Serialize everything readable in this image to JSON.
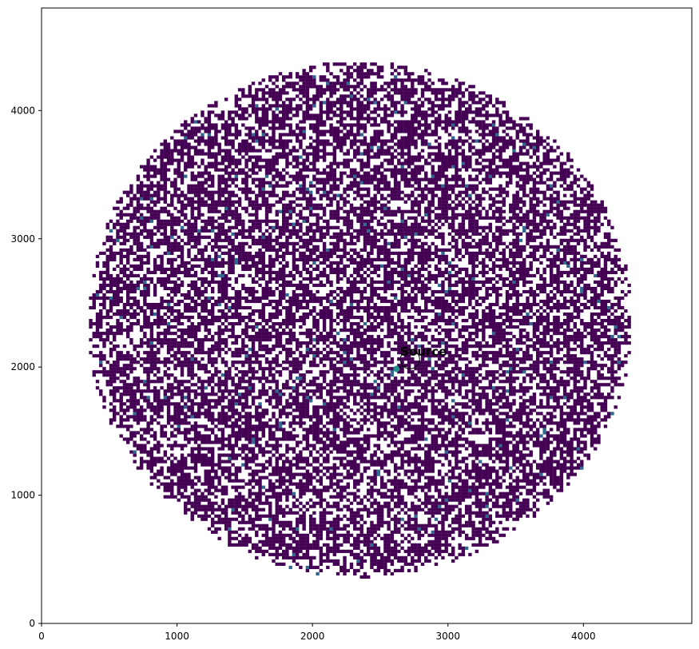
{
  "chart_data": {
    "type": "heatmap",
    "title": "",
    "xlabel": "",
    "ylabel": "",
    "xlim": [
      0,
      4800
    ],
    "ylim": [
      0,
      4800
    ],
    "xticks": [
      0,
      1000,
      2000,
      3000,
      4000
    ],
    "yticks": [
      0,
      1000,
      2000,
      3000,
      4000
    ],
    "xtick_labels": [
      "0",
      "1000",
      "2000",
      "3000",
      "4000"
    ],
    "ytick_labels": [
      "0",
      "1000",
      "2000",
      "3000",
      "4000"
    ],
    "grid": false,
    "colormap": "viridis",
    "background_color": "#ffffff",
    "occupied_region": {
      "shape": "circle",
      "center": [
        2350,
        2370
      ],
      "radius": 2010
    },
    "bin_size": 25,
    "typical_bin_color": "#440154",
    "bright_bin_color": "#31688e",
    "source": {
      "label": "Source",
      "position": [
        2620,
        1985
      ],
      "color": "#21918c",
      "annotation_text_position": [
        2820,
        2120
      ],
      "annotation_circle_center": [
        2720,
        2060
      ]
    }
  }
}
